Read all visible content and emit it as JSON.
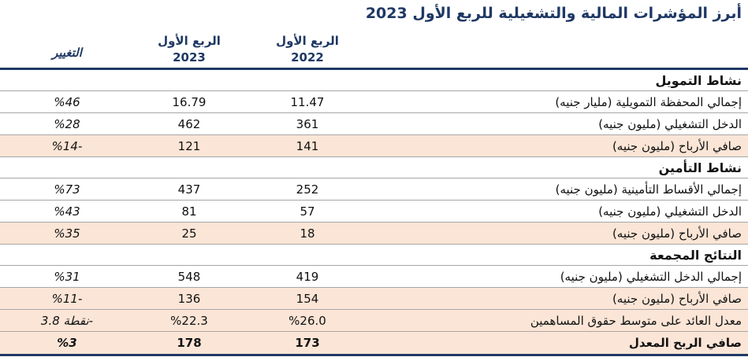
{
  "title": "أبرز المؤشرات المالية والتشغيلية للربع الأول 2023",
  "columns": {
    "q1_2022": {
      "line1": "الربع الأول",
      "line2": "2022"
    },
    "q1_2023": {
      "line1": "الربع الأول",
      "line2": "2023"
    },
    "change": "التغيير"
  },
  "sections": [
    {
      "header": "نشاط التمويل",
      "rows": [
        {
          "label": "إجمالي المحفظة التمويلية (مليار جنيه)",
          "v2022": "11.47",
          "v2023": "16.79",
          "change": "%46",
          "highlight": false,
          "bold": false
        },
        {
          "label": "الدخل التشغيلي (مليون جنيه)",
          "v2022": "361",
          "v2023": "462",
          "change": "%28",
          "highlight": false,
          "bold": false
        },
        {
          "label": "صافي الأرباح (مليون جنيه)",
          "v2022": "141",
          "v2023": "121",
          "change": "%14-",
          "highlight": true,
          "bold": false
        }
      ]
    },
    {
      "header": "نشاط التأمين",
      "rows": [
        {
          "label": "إجمالي الأقساط التأمينية (مليون جنيه)",
          "v2022": "252",
          "v2023": "437",
          "change": "%73",
          "highlight": false,
          "bold": false
        },
        {
          "label": "الدخل التشغيلي (مليون جنيه)",
          "v2022": "57",
          "v2023": "81",
          "change": "%43",
          "highlight": false,
          "bold": false
        },
        {
          "label": "صافي الأرباح (مليون جنيه)",
          "v2022": "18",
          "v2023": "25",
          "change": "%35",
          "highlight": true,
          "bold": false
        }
      ]
    },
    {
      "header": "النتائج المجمعة",
      "rows": [
        {
          "label": "إجمالي الدخل التشغيلي (مليون جنيه)",
          "v2022": "419",
          "v2023": "548",
          "change": "%31",
          "highlight": false,
          "bold": false
        },
        {
          "label": "صافي الأرباح (مليون جنيه)",
          "v2022": "154",
          "v2023": "136",
          "change": "%11-",
          "highlight": true,
          "bold": false
        },
        {
          "label": "معدل العائد على متوسط حقوق المساهمين",
          "v2022": "%26.0",
          "v2023": "%22.3",
          "change": "نقطة 3.8-",
          "highlight": true,
          "bold": false
        },
        {
          "label": "صافي الربح المعدل",
          "v2022": "173",
          "v2023": "178",
          "change": "%3",
          "highlight": true,
          "bold": true
        }
      ]
    }
  ],
  "colors": {
    "navy": "#1F3864",
    "highlight_row": "#FBE5D6",
    "separator": "#A6A6A6"
  }
}
